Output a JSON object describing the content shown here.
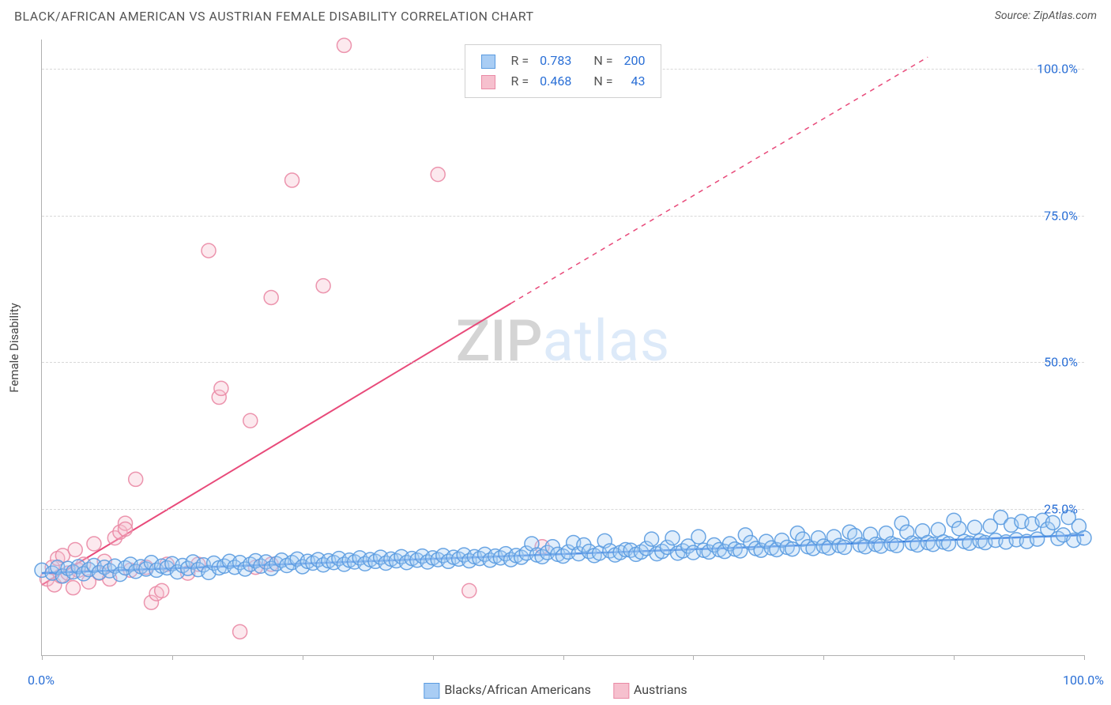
{
  "header": {
    "title": "BLACK/AFRICAN AMERICAN VS AUSTRIAN FEMALE DISABILITY CORRELATION CHART",
    "source": "Source: ZipAtlas.com"
  },
  "watermark": {
    "first": "ZIP",
    "rest": "atlas"
  },
  "y_axis": {
    "label": "Female Disability"
  },
  "chart": {
    "type": "scatter",
    "xlim": [
      0,
      100
    ],
    "ylim": [
      0,
      105
    ],
    "background_color": "#ffffff",
    "grid_color": "#d8d8d8",
    "grid_dash": "4 4",
    "marker_radius": 9,
    "marker_fill_opacity": 0.35,
    "y_ticks": [
      {
        "v": 25,
        "label": "25.0%"
      },
      {
        "v": 50,
        "label": "50.0%"
      },
      {
        "v": 75,
        "label": "75.0%"
      },
      {
        "v": 100,
        "label": "100.0%"
      }
    ],
    "x_ticks": [
      0,
      12.5,
      25,
      37.5,
      50,
      62.5,
      75,
      87.5,
      100
    ],
    "x_labels": [
      {
        "v": 0,
        "label": "0.0%",
        "color": "#2a6fd6"
      },
      {
        "v": 100,
        "label": "100.0%",
        "color": "#2a6fd6"
      }
    ],
    "series": [
      {
        "key": "blue",
        "name": "Blacks/African Americans",
        "color_fill": "#a9cdf4",
        "color_stroke": "#5a9be0",
        "line_color": "#2a74df",
        "line_width": 2.5,
        "line_dash_after_x": 100,
        "R": "0.783",
        "N": "200",
        "trend": {
          "x1": 0,
          "y1": 14.0,
          "x2": 100,
          "y2": 20.5,
          "xDashStart": 100,
          "xDashEnd": 100,
          "yDashEnd": 20.5
        },
        "points": [
          [
            0,
            14.5
          ],
          [
            1,
            14.0
          ],
          [
            1.5,
            15.0
          ],
          [
            2,
            13.5
          ],
          [
            2.5,
            14.8
          ],
          [
            3,
            14.2
          ],
          [
            3.5,
            15.1
          ],
          [
            4,
            13.9
          ],
          [
            4.5,
            14.6
          ],
          [
            5,
            15.3
          ],
          [
            5.5,
            14.1
          ],
          [
            6,
            15.0
          ],
          [
            6.5,
            14.4
          ],
          [
            7,
            15.2
          ],
          [
            7.5,
            13.8
          ],
          [
            8,
            14.9
          ],
          [
            8.5,
            15.5
          ],
          [
            9,
            14.3
          ],
          [
            9.5,
            15.1
          ],
          [
            10,
            14.7
          ],
          [
            10.5,
            15.8
          ],
          [
            11,
            14.5
          ],
          [
            11.5,
            15.2
          ],
          [
            12,
            14.9
          ],
          [
            12.5,
            15.6
          ],
          [
            13,
            14.2
          ],
          [
            13.5,
            15.3
          ],
          [
            14,
            14.8
          ],
          [
            14.5,
            15.9
          ],
          [
            15,
            14.6
          ],
          [
            15.5,
            15.4
          ],
          [
            16,
            14.1
          ],
          [
            16.5,
            15.7
          ],
          [
            17,
            14.9
          ],
          [
            17.5,
            15.2
          ],
          [
            18,
            16.0
          ],
          [
            18.5,
            15.0
          ],
          [
            19,
            15.8
          ],
          [
            19.5,
            14.7
          ],
          [
            20,
            15.5
          ],
          [
            20.5,
            16.1
          ],
          [
            21,
            15.2
          ],
          [
            21.5,
            15.9
          ],
          [
            22,
            14.8
          ],
          [
            22.5,
            15.6
          ],
          [
            23,
            16.2
          ],
          [
            23.5,
            15.3
          ],
          [
            24,
            15.8
          ],
          [
            24.5,
            16.4
          ],
          [
            25,
            15.1
          ],
          [
            25.5,
            16.0
          ],
          [
            26,
            15.7
          ],
          [
            26.5,
            16.3
          ],
          [
            27,
            15.4
          ],
          [
            27.5,
            16.1
          ],
          [
            28,
            15.8
          ],
          [
            28.5,
            16.5
          ],
          [
            29,
            15.5
          ],
          [
            29.5,
            16.2
          ],
          [
            30,
            15.9
          ],
          [
            30.5,
            16.6
          ],
          [
            31,
            15.6
          ],
          [
            31.5,
            16.3
          ],
          [
            32,
            16.0
          ],
          [
            32.5,
            16.7
          ],
          [
            33,
            15.7
          ],
          [
            33.5,
            16.4
          ],
          [
            34,
            16.1
          ],
          [
            34.5,
            16.8
          ],
          [
            35,
            15.8
          ],
          [
            35.5,
            16.5
          ],
          [
            36,
            16.2
          ],
          [
            36.5,
            16.9
          ],
          [
            37,
            15.9
          ],
          [
            37.5,
            16.6
          ],
          [
            38,
            16.3
          ],
          [
            38.5,
            17.0
          ],
          [
            39,
            16.0
          ],
          [
            39.5,
            16.7
          ],
          [
            40,
            16.4
          ],
          [
            40.5,
            17.1
          ],
          [
            41,
            16.1
          ],
          [
            41.5,
            16.8
          ],
          [
            42,
            16.5
          ],
          [
            42.5,
            17.2
          ],
          [
            43,
            16.2
          ],
          [
            43.5,
            16.9
          ],
          [
            44,
            16.6
          ],
          [
            44.5,
            17.3
          ],
          [
            45,
            16.3
          ],
          [
            45.5,
            17.0
          ],
          [
            46,
            16.7
          ],
          [
            46.5,
            17.4
          ],
          [
            47,
            19.0
          ],
          [
            47.5,
            17.1
          ],
          [
            48,
            16.8
          ],
          [
            48.5,
            17.5
          ],
          [
            49,
            18.5
          ],
          [
            49.5,
            17.2
          ],
          [
            50,
            16.9
          ],
          [
            50.5,
            17.6
          ],
          [
            51,
            19.2
          ],
          [
            51.5,
            17.3
          ],
          [
            52,
            18.8
          ],
          [
            52.5,
            17.7
          ],
          [
            53,
            17.0
          ],
          [
            53.5,
            17.4
          ],
          [
            54,
            19.5
          ],
          [
            54.5,
            17.8
          ],
          [
            55,
            17.1
          ],
          [
            55.5,
            17.5
          ],
          [
            56,
            18.0
          ],
          [
            56.5,
            17.9
          ],
          [
            57,
            17.2
          ],
          [
            57.5,
            17.6
          ],
          [
            58,
            18.2
          ],
          [
            58.5,
            19.8
          ],
          [
            59,
            17.3
          ],
          [
            59.5,
            17.7
          ],
          [
            60,
            18.4
          ],
          [
            60.5,
            20.0
          ],
          [
            61,
            17.4
          ],
          [
            61.5,
            17.8
          ],
          [
            62,
            18.6
          ],
          [
            62.5,
            17.5
          ],
          [
            63,
            20.2
          ],
          [
            63.5,
            17.9
          ],
          [
            64,
            17.6
          ],
          [
            64.5,
            18.8
          ],
          [
            65,
            18.0
          ],
          [
            65.5,
            17.7
          ],
          [
            66,
            19.0
          ],
          [
            66.5,
            18.1
          ],
          [
            67,
            17.8
          ],
          [
            67.5,
            20.5
          ],
          [
            68,
            19.2
          ],
          [
            68.5,
            18.2
          ],
          [
            69,
            17.9
          ],
          [
            69.5,
            19.4
          ],
          [
            70,
            18.3
          ],
          [
            70.5,
            18.0
          ],
          [
            71,
            19.6
          ],
          [
            71.5,
            18.4
          ],
          [
            72,
            18.1
          ],
          [
            72.5,
            20.8
          ],
          [
            73,
            19.8
          ],
          [
            73.5,
            18.5
          ],
          [
            74,
            18.2
          ],
          [
            74.5,
            20.0
          ],
          [
            75,
            18.6
          ],
          [
            75.5,
            18.3
          ],
          [
            76,
            20.2
          ],
          [
            76.5,
            18.7
          ],
          [
            77,
            18.4
          ],
          [
            77.5,
            21.0
          ],
          [
            78,
            20.4
          ],
          [
            78.5,
            18.8
          ],
          [
            79,
            18.5
          ],
          [
            79.5,
            20.6
          ],
          [
            80,
            18.9
          ],
          [
            80.5,
            18.6
          ],
          [
            81,
            20.8
          ],
          [
            81.5,
            19.0
          ],
          [
            82,
            18.7
          ],
          [
            82.5,
            22.5
          ],
          [
            83,
            21.0
          ],
          [
            83.5,
            19.1
          ],
          [
            84,
            18.8
          ],
          [
            84.5,
            21.2
          ],
          [
            85,
            19.2
          ],
          [
            85.5,
            18.9
          ],
          [
            86,
            21.4
          ],
          [
            86.5,
            19.3
          ],
          [
            87,
            19.0
          ],
          [
            87.5,
            23.0
          ],
          [
            88,
            21.6
          ],
          [
            88.5,
            19.4
          ],
          [
            89,
            19.1
          ],
          [
            89.5,
            21.8
          ],
          [
            90,
            19.5
          ],
          [
            90.5,
            19.2
          ],
          [
            91,
            22.0
          ],
          [
            91.5,
            19.6
          ],
          [
            92,
            23.5
          ],
          [
            92.5,
            19.3
          ],
          [
            93,
            22.2
          ],
          [
            93.5,
            19.7
          ],
          [
            94,
            22.8
          ],
          [
            94.5,
            19.4
          ],
          [
            95,
            22.4
          ],
          [
            95.5,
            19.8
          ],
          [
            96,
            23.0
          ],
          [
            96.5,
            21.5
          ],
          [
            97,
            22.6
          ],
          [
            97.5,
            19.9
          ],
          [
            98,
            20.5
          ],
          [
            98.5,
            23.5
          ],
          [
            99,
            19.6
          ],
          [
            99.5,
            22.0
          ],
          [
            100,
            20.0
          ]
        ]
      },
      {
        "key": "pink",
        "name": "Austrians",
        "color_fill": "#f6c0ce",
        "color_stroke": "#ea8aa5",
        "line_color": "#e84a7a",
        "line_width": 2.0,
        "R": "0.468",
        "N": "43",
        "trend": {
          "x1": 0,
          "y1": 12.0,
          "x2": 45,
          "y2": 60.0,
          "xDashStart": 45,
          "xDashEnd": 85,
          "yDashEnd": 102.0
        },
        "points": [
          [
            0.5,
            13.0
          ],
          [
            1,
            15.0
          ],
          [
            1.2,
            12.0
          ],
          [
            1.5,
            16.5
          ],
          [
            1.8,
            13.5
          ],
          [
            2,
            17.0
          ],
          [
            2.5,
            14.0
          ],
          [
            3,
            11.5
          ],
          [
            3.2,
            18.0
          ],
          [
            3.5,
            14.5
          ],
          [
            4,
            15.5
          ],
          [
            4.5,
            12.5
          ],
          [
            5,
            19.0
          ],
          [
            5.5,
            14.0
          ],
          [
            6,
            16.0
          ],
          [
            6.5,
            13.0
          ],
          [
            7,
            20.0
          ],
          [
            7.5,
            21.0
          ],
          [
            8,
            22.5
          ],
          [
            8,
            21.5
          ],
          [
            8.5,
            14.5
          ],
          [
            9,
            30.0
          ],
          [
            10,
            15.0
          ],
          [
            10.5,
            9.0
          ],
          [
            11,
            10.5
          ],
          [
            11.5,
            11.0
          ],
          [
            12,
            15.5
          ],
          [
            14,
            14.0
          ],
          [
            15,
            15.5
          ],
          [
            16,
            69.0
          ],
          [
            17,
            44.0
          ],
          [
            17.2,
            45.5
          ],
          [
            19,
            4.0
          ],
          [
            20,
            40.0
          ],
          [
            20.5,
            15.0
          ],
          [
            22,
            61.0
          ],
          [
            22,
            15.5
          ],
          [
            24,
            81.0
          ],
          [
            27,
            63.0
          ],
          [
            29,
            104.0
          ],
          [
            38,
            82.0
          ],
          [
            41,
            11.0
          ],
          [
            48,
            18.5
          ]
        ]
      }
    ]
  },
  "legend_top": {
    "R_label": "R =",
    "N_label": "N =",
    "value_color": "#2a6fd6",
    "text_color": "#555555"
  },
  "legend_bottom": {
    "items": [
      {
        "series": "blue"
      },
      {
        "series": "pink"
      }
    ]
  }
}
